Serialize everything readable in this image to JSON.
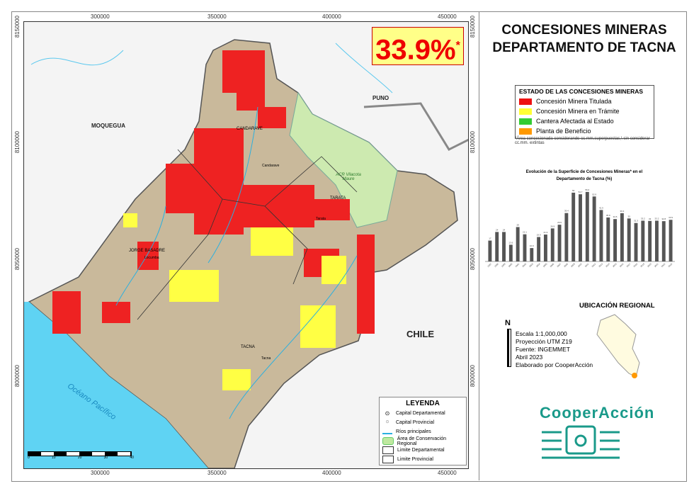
{
  "title": "CONCESIONES MINERAS DEPARTAMENTO DE TACNA",
  "badge": {
    "value": "33.9%",
    "mark": "*"
  },
  "coords": {
    "x": [
      "300000",
      "350000",
      "400000",
      "450000"
    ],
    "y": [
      "8150000",
      "8100000",
      "8050000",
      "8000000"
    ]
  },
  "status_legend": {
    "heading": "ESTADO DE LAS CONCESIONES MINERAS",
    "items": [
      {
        "label": "Concesión Minera Titulada",
        "color": "#ee1111"
      },
      {
        "label": "Concesión Minera en Trámite",
        "color": "#ffff33"
      },
      {
        "label": "Cantera Afectada al Estado",
        "color": "#33cc33"
      },
      {
        "label": "Planta de Beneficio",
        "color": "#ff9900"
      }
    ],
    "footnote": "*Área concesionada considerando cc.mm.superpuestas,\\ sin considerar cc.mm. extintas"
  },
  "chart_data": {
    "type": "bar",
    "title": "Evolución de la Superficie de Concesiones Mineras* en el Departamento de Tacna (%)",
    "categories": [
      "1997",
      "1998",
      "1999",
      "2000",
      "2001",
      "2002",
      "2003",
      "2004",
      "2005",
      "2006",
      "2007",
      "2008",
      "2009",
      "2010",
      "2011",
      "2012",
      "2013",
      "2014",
      "2015",
      "2016",
      "2017",
      "2018",
      "2019",
      "2020",
      "2021",
      "2022",
      "2023"
    ],
    "values": [
      17.0,
      24.0,
      24.0,
      13.6,
      28.0,
      22.1,
      10.9,
      19.9,
      21.9,
      26.9,
      29.9,
      39.4,
      56.0,
      54.7,
      56.6,
      52.9,
      41.9,
      35.8,
      34.5,
      39.3,
      35.0,
      31.3,
      33.2,
      33.0,
      33.2,
      32.8,
      33.9
    ],
    "ylim": [
      0,
      60
    ],
    "grid": false,
    "bar_color": "#555555"
  },
  "places": {
    "moquegua": "MOQUEGUA",
    "puno": "PUNO",
    "chile": "CHILE",
    "candarave": "CANDARAVE",
    "tarata": "TARATA",
    "jorge_basadre": "JORGE BASADRE",
    "tacna": "TACNA",
    "tacna_city": "Tacna",
    "candarave_city": "Candarave",
    "tarata_city": "Tarata",
    "locumba": "Locumba",
    "acr": "ACR Vilacota Maure",
    "ocean": "Océano Pacífico"
  },
  "map_legend": {
    "heading": "LEYENDA",
    "items": [
      "Capital Departamental",
      "Capital Provincial",
      "Ríos principales",
      "Área de Conservación Regional",
      "Limite Departamental",
      "Limite Provincial"
    ]
  },
  "scale_ticks": [
    "0",
    "10",
    "20",
    "30",
    "40"
  ],
  "regional_heading": "UBICACIÓN REGIONAL",
  "north": "N",
  "info": [
    "Escala 1:1,000,000",
    "Proyección UTM Z19",
    "Fuente: INGEMMET",
    "Abril 2023",
    "Elaborado por CooperAcción"
  ],
  "logo": "CooperAcción",
  "colors": {
    "ocean": "#5fd3f3",
    "region": "#c9b99b",
    "acr": "#cdeab0",
    "river": "#2ab0e0"
  }
}
